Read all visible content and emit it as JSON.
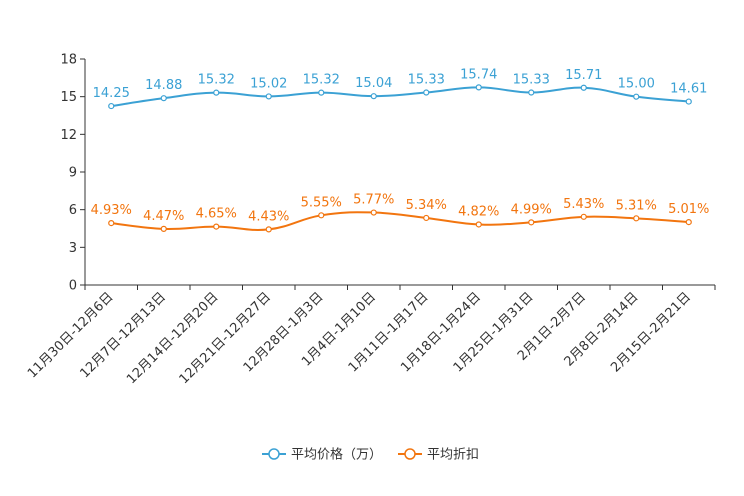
{
  "chart_data": {
    "type": "line",
    "categories": [
      "11月30日-12月6日",
      "12月7日-12月13日",
      "12月14日-12月20日",
      "12月21日-12月27日",
      "12月28日-1月3日",
      "1月4日-1月10日",
      "1月11日-1月17日",
      "1月18日-1月24日",
      "1月25日-1月31日",
      "2月1日-2月7日",
      "2月8日-2月14日",
      "2月15日-2月21日"
    ],
    "series": [
      {
        "name": "平均价格（万）",
        "color": "#3ba1d4",
        "values": [
          14.25,
          14.88,
          15.32,
          15.02,
          15.32,
          15.04,
          15.33,
          15.74,
          15.33,
          15.71,
          15.0,
          14.61
        ],
        "labels": [
          "14.25",
          "14.88",
          "15.32",
          "15.02",
          "15.32",
          "15.04",
          "15.33",
          "15.74",
          "15.33",
          "15.71",
          "15.00",
          "14.61"
        ]
      },
      {
        "name": "平均折扣",
        "color": "#f2750f",
        "values": [
          4.93,
          4.47,
          4.65,
          4.43,
          5.55,
          5.77,
          5.34,
          4.82,
          4.99,
          5.43,
          5.31,
          5.01
        ],
        "labels": [
          "4.93%",
          "4.47%",
          "4.65%",
          "4.43%",
          "5.55%",
          "5.77%",
          "5.34%",
          "4.82%",
          "4.99%",
          "5.43%",
          "5.31%",
          "5.01%"
        ]
      }
    ],
    "yticks": [
      "0",
      "3",
      "6",
      "9",
      "12",
      "15",
      "18"
    ],
    "ylim": [
      0,
      18
    ],
    "title": "",
    "xlabel": "",
    "ylabel": "",
    "legend": "bottom-center"
  }
}
